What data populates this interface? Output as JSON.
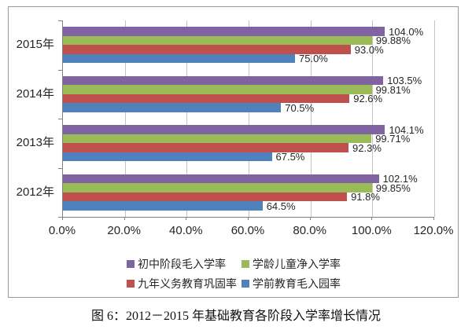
{
  "chart_data": {
    "type": "bar",
    "orientation": "horizontal",
    "title": "",
    "xlabel": "",
    "ylabel": "",
    "xlim": [
      0,
      120
    ],
    "grid": true,
    "legend_position": "bottom",
    "categories": [
      "2015年",
      "2014年",
      "2013年",
      "2012年"
    ],
    "x_ticks": [
      "0.0%",
      "20.0%",
      "40.0%",
      "60.0%",
      "80.0%",
      "100.0%",
      "120.0%"
    ],
    "series": [
      {
        "name": "初中阶段毛入学率",
        "color": "#8064A2",
        "values": [
          104.0,
          103.5,
          104.1,
          102.1
        ],
        "labels": [
          "104.0%",
          "103.5%",
          "104.1%",
          "102.1%"
        ]
      },
      {
        "name": "学龄儿童净入学率",
        "color": "#9BBB59",
        "values": [
          99.88,
          99.81,
          99.71,
          99.85
        ],
        "labels": [
          "99.88%",
          "99.81%",
          "99.71%",
          "99.85%"
        ]
      },
      {
        "name": "九年义务教育巩固率",
        "color": "#C0504D",
        "values": [
          93.0,
          92.6,
          92.3,
          91.8
        ],
        "labels": [
          "93.0%",
          "92.6%",
          "92.3%",
          "91.8%"
        ]
      },
      {
        "name": "学前教育毛入园率",
        "color": "#4F81BD",
        "values": [
          75.0,
          70.5,
          67.5,
          64.5
        ],
        "labels": [
          "75.0%",
          "70.5%",
          "67.5%",
          "64.5%"
        ]
      }
    ]
  },
  "caption": "图 6：2012－2015 年基础教育各阶段入学率增长情况"
}
